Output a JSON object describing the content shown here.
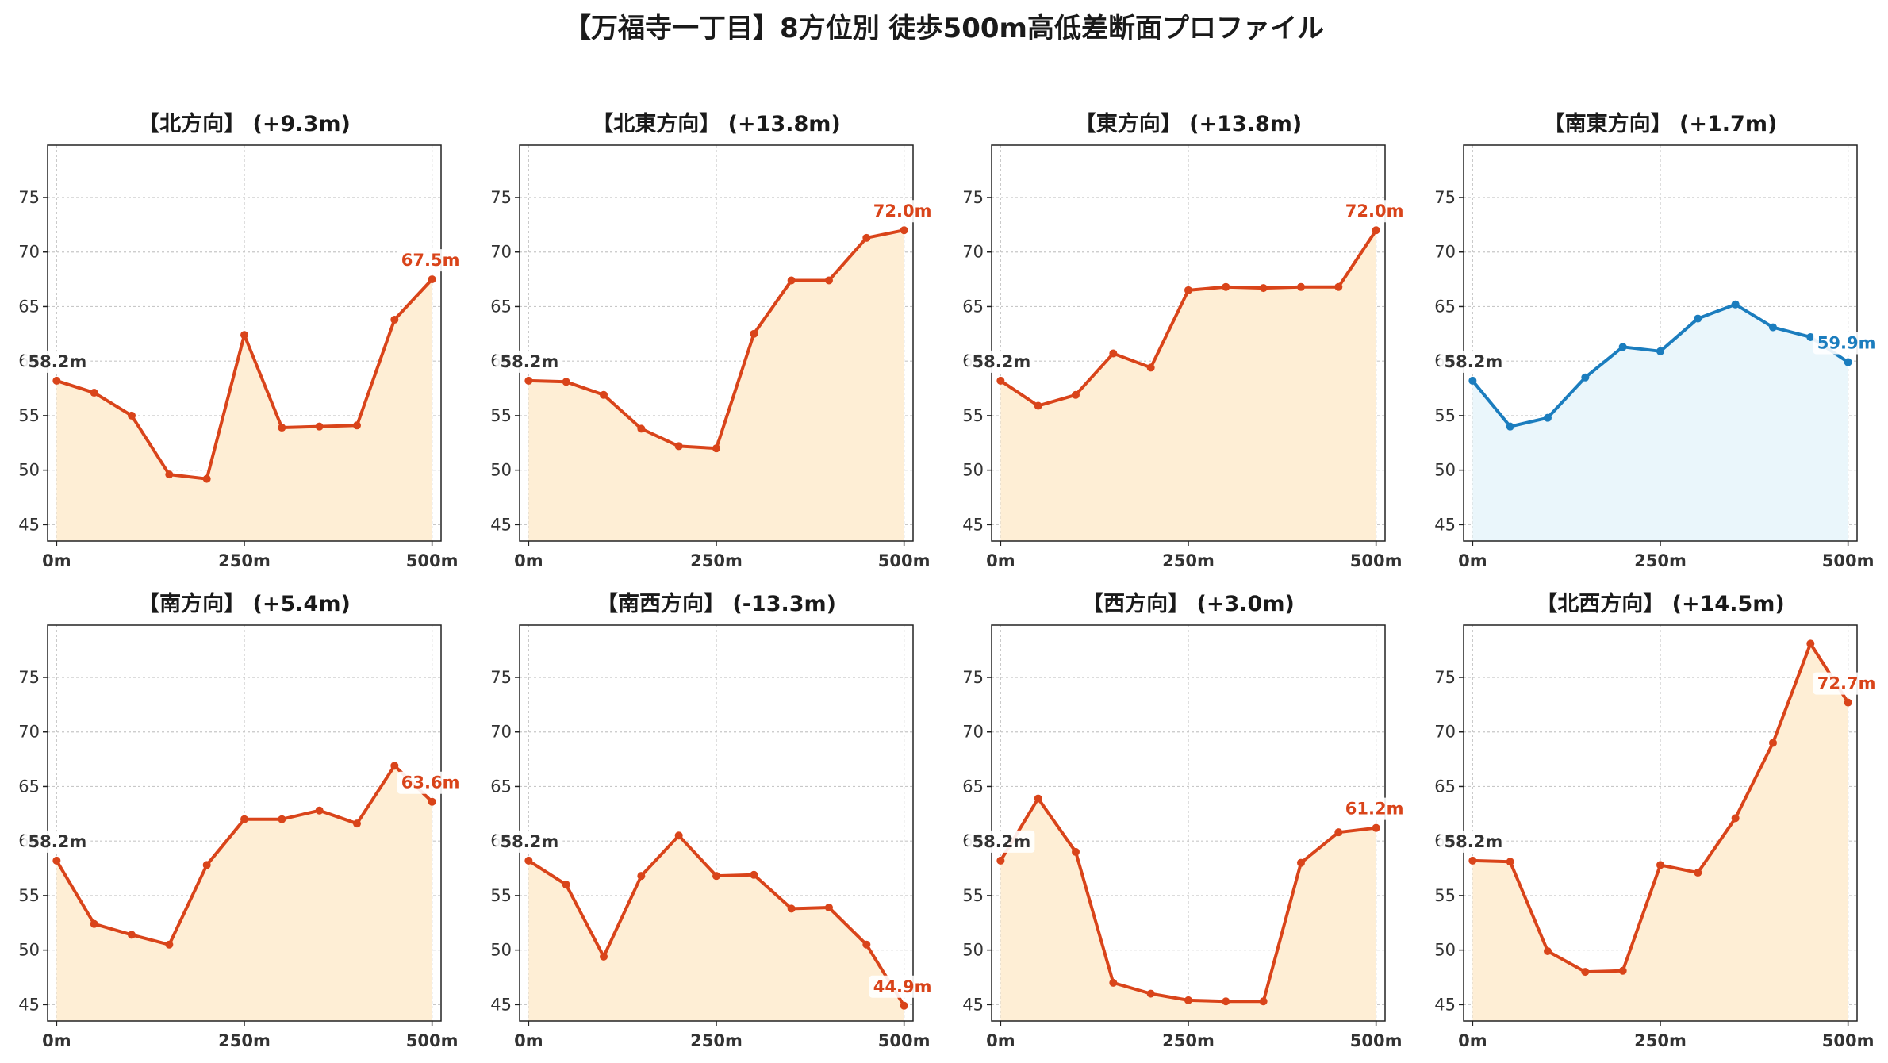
{
  "title": "【万福寺一丁目】8方位別 徒歩500m高低差断面プロファイル",
  "colors": {
    "up_line": "#d9441a",
    "up_fill": "#feeed5",
    "flat_line": "#1b7dbe",
    "flat_fill": "#eaf6fb",
    "start_label": "#333333",
    "grid": "#c8c8c8"
  },
  "chart_data": [
    {
      "type": "line",
      "title": "【北方向】 (+9.3m)",
      "style": "up",
      "x": [
        0,
        50,
        100,
        150,
        200,
        250,
        300,
        350,
        400,
        450,
        500
      ],
      "y": [
        58.2,
        57.1,
        55.0,
        49.6,
        49.2,
        62.4,
        53.9,
        54.0,
        54.1,
        63.8,
        67.5
      ],
      "start_label": "58.2m",
      "end_label": "67.5m",
      "x_ticks": [
        "0m",
        "250m",
        "500m"
      ],
      "y_ticks": [
        45,
        50,
        55,
        60,
        65,
        70,
        75
      ],
      "ylim": [
        43.5,
        79.8
      ],
      "xlim": [
        -12,
        512
      ],
      "grid": true
    },
    {
      "type": "line",
      "title": "【北東方向】 (+13.8m)",
      "style": "up",
      "x": [
        0,
        50,
        100,
        150,
        200,
        250,
        300,
        350,
        400,
        450,
        500
      ],
      "y": [
        58.2,
        58.1,
        56.9,
        53.8,
        52.2,
        52.0,
        62.5,
        67.4,
        67.4,
        71.3,
        72.0
      ],
      "start_label": "58.2m",
      "end_label": "72.0m",
      "x_ticks": [
        "0m",
        "250m",
        "500m"
      ],
      "y_ticks": [
        45,
        50,
        55,
        60,
        65,
        70,
        75
      ],
      "ylim": [
        43.5,
        79.8
      ],
      "xlim": [
        -12,
        512
      ],
      "grid": true
    },
    {
      "type": "line",
      "title": "【東方向】 (+13.8m)",
      "style": "up",
      "x": [
        0,
        50,
        100,
        150,
        200,
        250,
        300,
        350,
        400,
        450,
        500
      ],
      "y": [
        58.2,
        55.9,
        56.9,
        60.7,
        59.4,
        66.5,
        66.8,
        66.7,
        66.8,
        66.8,
        72.0
      ],
      "start_label": "58.2m",
      "end_label": "72.0m",
      "x_ticks": [
        "0m",
        "250m",
        "500m"
      ],
      "y_ticks": [
        45,
        50,
        55,
        60,
        65,
        70,
        75
      ],
      "ylim": [
        43.5,
        79.8
      ],
      "xlim": [
        -12,
        512
      ],
      "grid": true
    },
    {
      "type": "line",
      "title": "【南東方向】 (+1.7m)",
      "style": "flat",
      "x": [
        0,
        50,
        100,
        150,
        200,
        250,
        300,
        350,
        400,
        450,
        500
      ],
      "y": [
        58.2,
        54.0,
        54.8,
        58.5,
        61.3,
        60.9,
        63.9,
        65.2,
        63.1,
        62.2,
        59.9
      ],
      "start_label": "58.2m",
      "end_label": "59.9m",
      "x_ticks": [
        "0m",
        "250m",
        "500m"
      ],
      "y_ticks": [
        45,
        50,
        55,
        60,
        65,
        70,
        75
      ],
      "ylim": [
        43.5,
        79.8
      ],
      "xlim": [
        -12,
        512
      ],
      "grid": true
    },
    {
      "type": "line",
      "title": "【南方向】 (+5.4m)",
      "style": "up",
      "x": [
        0,
        50,
        100,
        150,
        200,
        250,
        300,
        350,
        400,
        450,
        500
      ],
      "y": [
        58.2,
        52.4,
        51.4,
        50.5,
        57.8,
        62.0,
        62.0,
        62.8,
        61.6,
        66.9,
        63.6
      ],
      "start_label": "58.2m",
      "end_label": "63.6m",
      "x_ticks": [
        "0m",
        "250m",
        "500m"
      ],
      "y_ticks": [
        45,
        50,
        55,
        60,
        65,
        70,
        75
      ],
      "ylim": [
        43.5,
        79.8
      ],
      "xlim": [
        -12,
        512
      ],
      "grid": true
    },
    {
      "type": "line",
      "title": "【南西方向】 (-13.3m)",
      "style": "up",
      "x": [
        0,
        50,
        100,
        150,
        200,
        250,
        300,
        350,
        400,
        450,
        500
      ],
      "y": [
        58.2,
        56.0,
        49.4,
        56.8,
        60.5,
        56.8,
        56.9,
        53.8,
        53.9,
        50.5,
        44.9
      ],
      "start_label": "58.2m",
      "end_label": "44.9m",
      "x_ticks": [
        "0m",
        "250m",
        "500m"
      ],
      "y_ticks": [
        45,
        50,
        55,
        60,
        65,
        70,
        75
      ],
      "ylim": [
        43.5,
        79.8
      ],
      "xlim": [
        -12,
        512
      ],
      "grid": true
    },
    {
      "type": "line",
      "title": "【西方向】 (+3.0m)",
      "style": "up",
      "x": [
        0,
        50,
        100,
        150,
        200,
        250,
        300,
        350,
        400,
        450,
        500
      ],
      "y": [
        58.2,
        63.9,
        59.0,
        47.0,
        46.0,
        45.4,
        45.3,
        45.3,
        58.0,
        60.8,
        61.2
      ],
      "start_label": "58.2m",
      "end_label": "61.2m",
      "x_ticks": [
        "0m",
        "250m",
        "500m"
      ],
      "y_ticks": [
        45,
        50,
        55,
        60,
        65,
        70,
        75
      ],
      "ylim": [
        43.5,
        79.8
      ],
      "xlim": [
        -12,
        512
      ],
      "grid": true
    },
    {
      "type": "line",
      "title": "【北西方向】 (+14.5m)",
      "style": "up",
      "x": [
        0,
        50,
        100,
        150,
        200,
        250,
        300,
        350,
        400,
        450,
        500
      ],
      "y": [
        58.2,
        58.1,
        49.9,
        48.0,
        48.1,
        57.8,
        57.1,
        62.1,
        69.0,
        78.1,
        72.7
      ],
      "start_label": "58.2m",
      "end_label": "72.7m",
      "x_ticks": [
        "0m",
        "250m",
        "500m"
      ],
      "y_ticks": [
        45,
        50,
        55,
        60,
        65,
        70,
        75
      ],
      "ylim": [
        43.5,
        79.8
      ],
      "xlim": [
        -12,
        512
      ],
      "grid": true
    }
  ]
}
